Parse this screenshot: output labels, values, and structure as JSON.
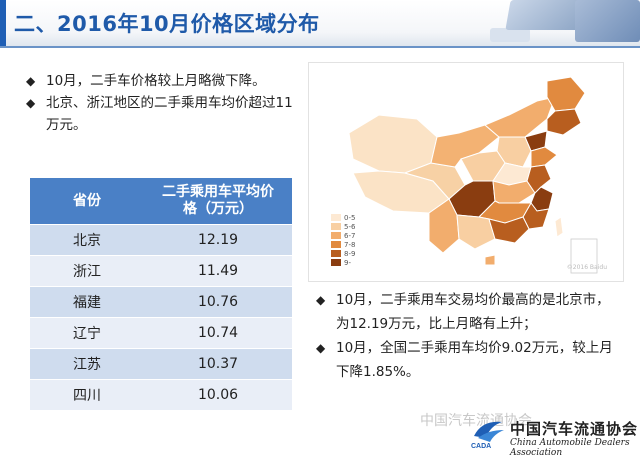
{
  "header": {
    "title": "二、2016年10月价格区域分布"
  },
  "bullets_left": [
    {
      "mark": "◆",
      "text": "10月，二手车价格较上月略微下降。"
    },
    {
      "mark": "◆",
      "text": "北京、浙江地区的二手乘用车均价超过11万元。"
    }
  ],
  "table": {
    "headers": [
      "省份",
      "二手乘用车平均价格（万元）"
    ],
    "rows": [
      {
        "province": "北京",
        "price": "12.19"
      },
      {
        "province": "浙江",
        "price": "11.49"
      },
      {
        "province": "福建",
        "price": "10.76"
      },
      {
        "province": "辽宁",
        "price": "10.74"
      },
      {
        "province": "江苏",
        "price": "10.37"
      },
      {
        "province": "四川",
        "price": "10.06"
      }
    ]
  },
  "map": {
    "legend": [
      "0-5",
      "5-6",
      "6-7",
      "7-8",
      "8-9",
      "9-"
    ],
    "legend_colors": [
      "#fde9d3",
      "#f8cfa2",
      "#f2ad6d",
      "#e18a3f",
      "#b85e1f",
      "#8a3d10"
    ],
    "credit": "©2016 Baidu"
  },
  "bullets_right": [
    {
      "mark": "◆",
      "text": "10月，二手乘用车交易均价最高的是北京市，为12.19万元，比上月略有上升；"
    },
    {
      "mark": "◆",
      "text": "10月，全国二手乘用车均价9.02万元，较上月下降1.85%。"
    }
  ],
  "footer": {
    "watermark": "中国汽车流通协会",
    "logo_text": "CADA",
    "assoc_name": "中国汽车流通协会",
    "assoc_en": "China Automobile Dealers Association"
  }
}
